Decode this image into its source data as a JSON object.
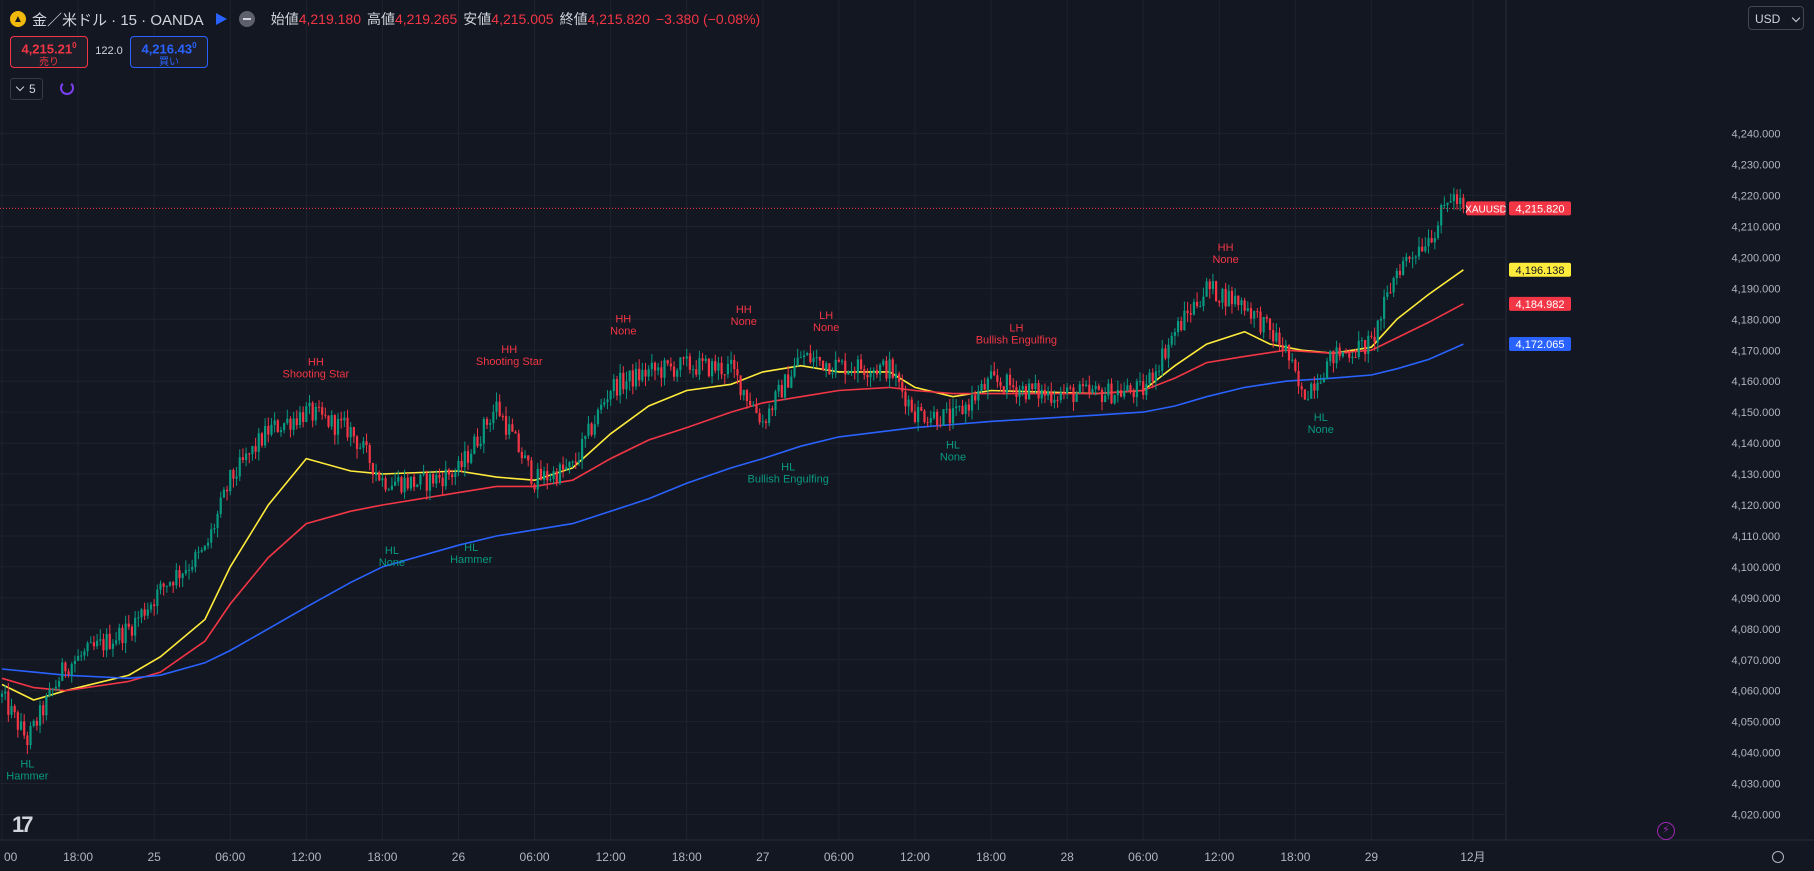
{
  "header": {
    "symbol_title": "金／米ドル · 15 · OANDA",
    "open_label": "始値",
    "open_value": "4,219.180",
    "high_label": "高値",
    "high_value": "4,219.265",
    "low_label": "安値",
    "low_value": "4,215.005",
    "close_label": "終値",
    "close_value": "4,215.820",
    "change": "−3.380 (−0.08%)"
  },
  "trade": {
    "sell_price": "4,215.21",
    "sell_sup": "0",
    "sell_label": "売り",
    "spread": "122.0",
    "buy_price": "4,216.43",
    "buy_sup": "0",
    "buy_label": "買い"
  },
  "indicator_count": "5",
  "currency": "USD",
  "logo": "17",
  "colors": {
    "up": "#089981",
    "down": "#f23645",
    "ma_fast": "#ffeb3b",
    "ma_mid": "#f23645",
    "ma_slow": "#2962ff",
    "bg": "#131722",
    "grid": "#1e222d"
  },
  "chart_data": {
    "type": "candlestick",
    "ylim": [
      4017,
      4245
    ],
    "yticks": [
      "4,020.000",
      "4,030.000",
      "4,040.000",
      "4,050.000",
      "4,060.000",
      "4,070.000",
      "4,080.000",
      "4,090.000",
      "4,100.000",
      "4,110.000",
      "4,120.000",
      "4,130.000",
      "4,140.000",
      "4,150.000",
      "4,160.000",
      "4,170.000",
      "4,180.000",
      "4,190.000",
      "4,200.000",
      "4,210.000",
      "4,220.000",
      "4,230.000",
      "4,240.000"
    ],
    "yticks_values": [
      4020,
      4030,
      4040,
      4050,
      4060,
      4070,
      4080,
      4090,
      4100,
      4110,
      4120,
      4130,
      4140,
      4150,
      4160,
      4170,
      4180,
      4190,
      4200,
      4210,
      4220,
      4230,
      4240
    ],
    "xticks": [
      "00",
      "18:00",
      "25",
      "06:00",
      "12:00",
      "18:00",
      "26",
      "06:00",
      "12:00",
      "18:00",
      "27",
      "06:00",
      "12:00",
      "18:00",
      "28",
      "06:00",
      "12:00",
      "18:00",
      "29",
      "12月"
    ],
    "xticks_index": [
      0,
      24,
      48,
      72,
      96,
      120,
      144,
      168,
      192,
      216,
      240,
      264,
      288,
      312,
      336,
      360,
      384,
      408,
      432,
      464
    ],
    "bars_total": 466,
    "anchors": [
      [
        0,
        4058
      ],
      [
        8,
        4044
      ],
      [
        20,
        4068
      ],
      [
        40,
        4080
      ],
      [
        52,
        4095
      ],
      [
        64,
        4105
      ],
      [
        72,
        4128
      ],
      [
        84,
        4144
      ],
      [
        96,
        4150
      ],
      [
        110,
        4144
      ],
      [
        120,
        4128
      ],
      [
        132,
        4127
      ],
      [
        144,
        4131
      ],
      [
        156,
        4152
      ],
      [
        168,
        4128
      ],
      [
        180,
        4132
      ],
      [
        192,
        4158
      ],
      [
        204,
        4163
      ],
      [
        216,
        4165
      ],
      [
        230,
        4164
      ],
      [
        240,
        4147
      ],
      [
        252,
        4168
      ],
      [
        264,
        4165
      ],
      [
        280,
        4164
      ],
      [
        288,
        4150
      ],
      [
        300,
        4148
      ],
      [
        312,
        4160
      ],
      [
        328,
        4156
      ],
      [
        345,
        4156
      ],
      [
        360,
        4157
      ],
      [
        370,
        4176
      ],
      [
        380,
        4190
      ],
      [
        392,
        4185
      ],
      [
        405,
        4170
      ],
      [
        410,
        4155
      ],
      [
        420,
        4168
      ],
      [
        432,
        4172
      ],
      [
        440,
        4196
      ],
      [
        452,
        4209
      ],
      [
        457,
        4220
      ],
      [
        461,
        4216
      ]
    ],
    "series": [
      {
        "name": "",
        "color": "#ffeb3b",
        "last_value": "4,196.138",
        "points": [
          [
            0,
            4062
          ],
          [
            10,
            4057
          ],
          [
            20,
            4060
          ],
          [
            40,
            4065
          ],
          [
            50,
            4071
          ],
          [
            64,
            4083
          ],
          [
            72,
            4100
          ],
          [
            84,
            4120
          ],
          [
            96,
            4135
          ],
          [
            110,
            4131
          ],
          [
            120,
            4130
          ],
          [
            144,
            4131
          ],
          [
            156,
            4129
          ],
          [
            168,
            4128
          ],
          [
            180,
            4132
          ],
          [
            192,
            4143
          ],
          [
            204,
            4152
          ],
          [
            216,
            4157
          ],
          [
            230,
            4159
          ],
          [
            240,
            4163
          ],
          [
            252,
            4165
          ],
          [
            264,
            4163
          ],
          [
            280,
            4163
          ],
          [
            288,
            4158
          ],
          [
            300,
            4155
          ],
          [
            312,
            4157
          ],
          [
            345,
            4156
          ],
          [
            360,
            4157
          ],
          [
            370,
            4165
          ],
          [
            380,
            4172
          ],
          [
            392,
            4176
          ],
          [
            400,
            4172
          ],
          [
            410,
            4170
          ],
          [
            420,
            4169
          ],
          [
            432,
            4171
          ],
          [
            440,
            4180
          ],
          [
            450,
            4188
          ],
          [
            461,
            4196
          ]
        ]
      },
      {
        "name": "",
        "color": "#f23645",
        "last_value": "4,184.982",
        "points": [
          [
            0,
            4064
          ],
          [
            10,
            4061
          ],
          [
            20,
            4060
          ],
          [
            40,
            4063
          ],
          [
            50,
            4066
          ],
          [
            64,
            4076
          ],
          [
            72,
            4088
          ],
          [
            84,
            4103
          ],
          [
            96,
            4114
          ],
          [
            110,
            4118
          ],
          [
            120,
            4120
          ],
          [
            144,
            4124
          ],
          [
            156,
            4126
          ],
          [
            168,
            4126
          ],
          [
            180,
            4128
          ],
          [
            192,
            4135
          ],
          [
            204,
            4141
          ],
          [
            216,
            4145
          ],
          [
            230,
            4150
          ],
          [
            240,
            4153
          ],
          [
            252,
            4155
          ],
          [
            264,
            4157
          ],
          [
            280,
            4158
          ],
          [
            288,
            4157
          ],
          [
            300,
            4156
          ],
          [
            312,
            4156
          ],
          [
            345,
            4156
          ],
          [
            360,
            4157
          ],
          [
            370,
            4161
          ],
          [
            380,
            4166
          ],
          [
            392,
            4168
          ],
          [
            405,
            4170
          ],
          [
            420,
            4169
          ],
          [
            432,
            4170
          ],
          [
            440,
            4174
          ],
          [
            450,
            4179
          ],
          [
            461,
            4185
          ]
        ]
      },
      {
        "name": "",
        "color": "#2962ff",
        "last_value": "4,172.065",
        "points": [
          [
            0,
            4067
          ],
          [
            10,
            4066
          ],
          [
            20,
            4065
          ],
          [
            40,
            4064
          ],
          [
            50,
            4065
          ],
          [
            64,
            4069
          ],
          [
            72,
            4073
          ],
          [
            84,
            4080
          ],
          [
            96,
            4087
          ],
          [
            110,
            4095
          ],
          [
            120,
            4100
          ],
          [
            144,
            4107
          ],
          [
            156,
            4110
          ],
          [
            168,
            4112
          ],
          [
            180,
            4114
          ],
          [
            192,
            4118
          ],
          [
            204,
            4122
          ],
          [
            216,
            4127
          ],
          [
            230,
            4132
          ],
          [
            240,
            4135
          ],
          [
            252,
            4139
          ],
          [
            264,
            4142
          ],
          [
            280,
            4144
          ],
          [
            288,
            4145
          ],
          [
            300,
            4146
          ],
          [
            312,
            4147
          ],
          [
            345,
            4149
          ],
          [
            360,
            4150
          ],
          [
            370,
            4152
          ],
          [
            380,
            4155
          ],
          [
            392,
            4158
          ],
          [
            405,
            4160
          ],
          [
            420,
            4161
          ],
          [
            432,
            4162
          ],
          [
            440,
            4164
          ],
          [
            450,
            4167
          ],
          [
            461,
            4172
          ]
        ]
      }
    ],
    "current_price": {
      "label": "XAUUSD",
      "value": "4,215.820",
      "y": 4215.82
    },
    "annotations": [
      {
        "i": 99,
        "y": 4156,
        "pos": "above",
        "color": "#f23645",
        "l1": "HH",
        "l2": "Shooting Star"
      },
      {
        "i": 160,
        "y": 4160,
        "pos": "above",
        "color": "#f23645",
        "l1": "HH",
        "l2": "Shooting Star"
      },
      {
        "i": 196,
        "y": 4170,
        "pos": "above",
        "color": "#f23645",
        "l1": "HH",
        "l2": "None"
      },
      {
        "i": 234,
        "y": 4173,
        "pos": "above",
        "color": "#f23645",
        "l1": "HH",
        "l2": "None"
      },
      {
        "i": 260,
        "y": 4171,
        "pos": "above",
        "color": "#f23645",
        "l1": "LH",
        "l2": "None"
      },
      {
        "i": 320,
        "y": 4167,
        "pos": "above",
        "color": "#f23645",
        "l1": "LH",
        "l2": "Bullish Engulfing"
      },
      {
        "i": 386,
        "y": 4193,
        "pos": "above",
        "color": "#f23645",
        "l1": "HH",
        "l2": "None"
      },
      {
        "i": 8,
        "y": 4041,
        "pos": "below",
        "color": "#089981",
        "l1": "HL",
        "l2": "Hammer"
      },
      {
        "i": 123,
        "y": 4110,
        "pos": "below",
        "color": "#089981",
        "l1": "HL",
        "l2": "None"
      },
      {
        "i": 148,
        "y": 4111,
        "pos": "below",
        "color": "#089981",
        "l1": "HL",
        "l2": "Hammer"
      },
      {
        "i": 248,
        "y": 4137,
        "pos": "below",
        "color": "#089981",
        "l1": "HL",
        "l2": "Bullish Engulfing"
      },
      {
        "i": 300,
        "y": 4144,
        "pos": "below",
        "color": "#089981",
        "l1": "HL",
        "l2": "None"
      },
      {
        "i": 416,
        "y": 4153,
        "pos": "below",
        "color": "#089981",
        "l1": "HL",
        "l2": "None"
      }
    ]
  }
}
